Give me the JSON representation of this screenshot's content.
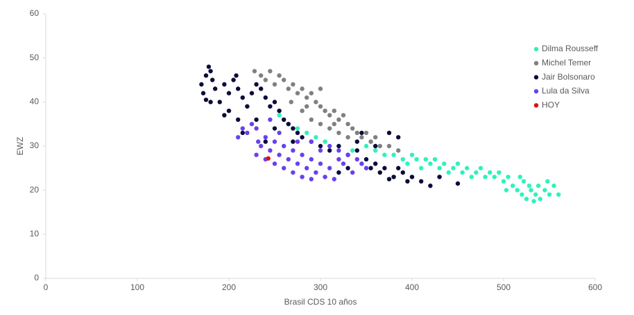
{
  "chart_data": {
    "type": "scatter",
    "x_label": "Brasil CDS 10 años",
    "y_label": "EWZ",
    "xlim": [
      0,
      600
    ],
    "xticks": [
      0,
      100,
      200,
      300,
      400,
      500,
      600
    ],
    "ylim": [
      0,
      60
    ],
    "yticks": [
      0,
      10,
      20,
      30,
      40,
      50,
      60
    ],
    "grid": false,
    "legend": "right",
    "series": [
      {
        "name": "Dilma Rousseff",
        "color": "#2ef2bc",
        "x": [
          255,
          265,
          275,
          285,
          295,
          305,
          320,
          335,
          350,
          360,
          370,
          380,
          390,
          395,
          400,
          405,
          410,
          415,
          420,
          425,
          430,
          435,
          440,
          445,
          450,
          455,
          460,
          465,
          470,
          475,
          480,
          485,
          490,
          495,
          500,
          505,
          510,
          515,
          520,
          522,
          525,
          530,
          535,
          538,
          540,
          545,
          550,
          555,
          560,
          518,
          528,
          533,
          503,
          548
        ],
        "y": [
          37,
          35,
          34,
          33,
          32,
          31,
          30,
          29,
          30,
          29,
          28,
          28,
          27,
          26,
          28,
          27,
          25,
          27,
          26,
          27,
          25,
          26,
          24,
          25,
          26,
          24,
          25,
          23,
          24,
          25,
          23,
          24,
          23,
          24,
          22,
          23,
          21,
          20,
          19,
          22,
          18,
          20,
          19,
          21,
          18,
          20,
          19,
          21,
          19,
          23,
          21,
          17.5,
          20,
          22
        ]
      },
      {
        "name": "Michel Temer",
        "color": "#808080",
        "x": [
          228,
          235,
          240,
          245,
          250,
          255,
          260,
          265,
          270,
          275,
          280,
          285,
          290,
          295,
          300,
          305,
          310,
          315,
          320,
          325,
          330,
          335,
          340,
          345,
          350,
          355,
          360,
          365,
          375,
          385,
          268,
          280,
          290,
          300,
          310,
          320,
          330,
          300,
          285,
          315
        ],
        "y": [
          47,
          46,
          45,
          47,
          44,
          46,
          45,
          43,
          44,
          42,
          43,
          41,
          42,
          40,
          39,
          38,
          37,
          38,
          36,
          37,
          35,
          34,
          33,
          32,
          33,
          31,
          32,
          30,
          30,
          29,
          40,
          38,
          36,
          35,
          34,
          33,
          32,
          43,
          39,
          35
        ]
      },
      {
        "name": "Jair Bolsonaro",
        "color": "#0c0c3a",
        "x": [
          170,
          172,
          175,
          178,
          180,
          182,
          185,
          190,
          195,
          200,
          205,
          208,
          210,
          215,
          220,
          225,
          230,
          235,
          240,
          245,
          250,
          255,
          260,
          265,
          270,
          275,
          280,
          290,
          300,
          310,
          320,
          330,
          340,
          350,
          355,
          360,
          365,
          370,
          375,
          380,
          385,
          390,
          395,
          400,
          410,
          420,
          430,
          450,
          175,
          180,
          195,
          210,
          230,
          250,
          270,
          330,
          345,
          375,
          385,
          360,
          340,
          200,
          215,
          240,
          320
        ],
        "y": [
          44,
          42,
          46,
          48,
          47,
          45,
          43,
          40,
          44,
          42,
          45,
          46,
          43,
          41,
          39,
          42,
          44,
          43,
          41,
          39,
          40,
          38,
          36,
          35,
          34,
          33,
          32,
          31,
          30,
          29,
          30,
          28,
          29,
          27,
          25,
          26,
          24,
          25,
          22.5,
          23,
          25,
          24,
          22,
          23,
          22,
          21,
          23,
          21.5,
          40.5,
          40,
          37,
          36,
          36,
          34,
          31,
          25,
          33,
          33,
          32,
          30,
          31,
          38,
          33,
          31,
          24
        ]
      },
      {
        "name": "Lula da Silva",
        "color": "#6a40ee",
        "x": [
          210,
          215,
          220,
          225,
          230,
          232,
          235,
          240,
          245,
          250,
          255,
          260,
          265,
          270,
          275,
          280,
          285,
          290,
          295,
          300,
          305,
          310,
          315,
          320,
          325,
          330,
          335,
          340,
          345,
          350,
          240,
          250,
          260,
          270,
          280,
          290,
          300,
          310,
          320,
          245,
          255,
          275,
          290,
          230
        ],
        "y": [
          32,
          34,
          33,
          35,
          34,
          31,
          30,
          32,
          29,
          31,
          28,
          30,
          27,
          29,
          26,
          28,
          25,
          27,
          24,
          26,
          23,
          25,
          22.5,
          27,
          26,
          28,
          24,
          27,
          26,
          25,
          27,
          26,
          25,
          24,
          23,
          22.5,
          29,
          30,
          29,
          36,
          33,
          31,
          31,
          28
        ]
      },
      {
        "name": "HOY",
        "color": "#e01010",
        "x": [
          243
        ],
        "y": [
          27.2
        ]
      }
    ]
  }
}
